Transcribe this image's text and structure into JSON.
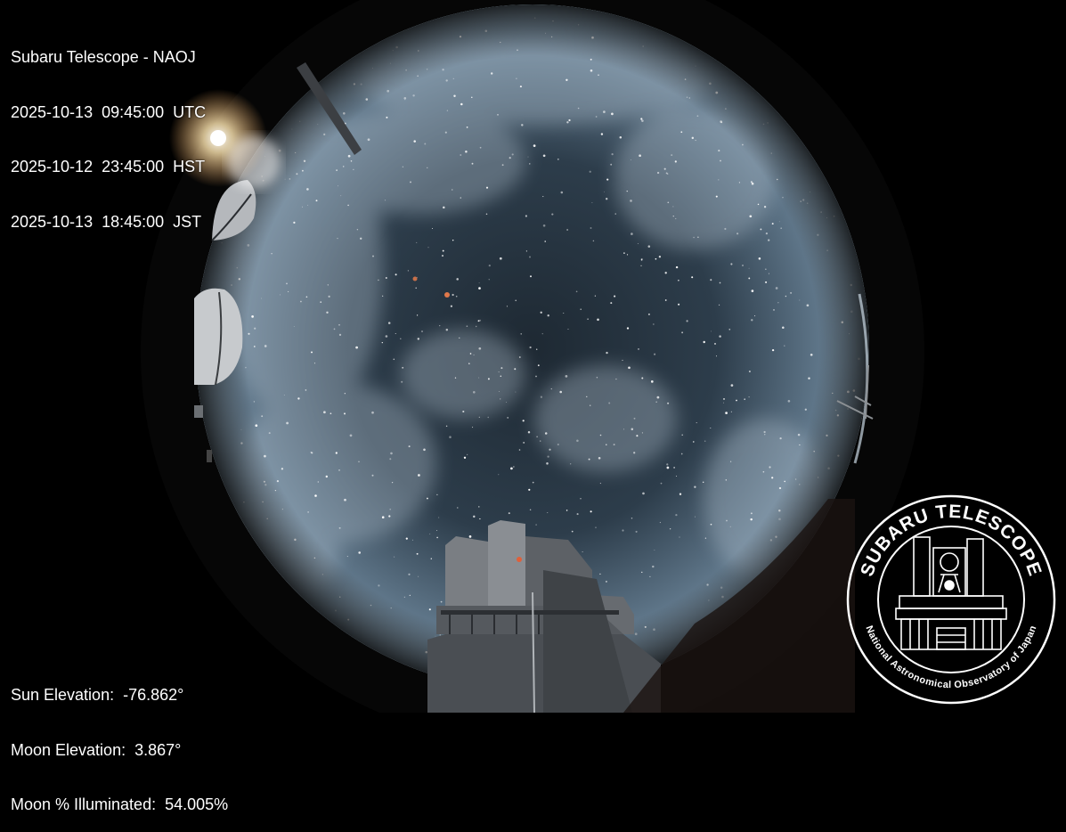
{
  "header": {
    "title": "Subaru Telescope - NAOJ",
    "utc": "2025-10-13  09:45:00  UTC",
    "hst": "2025-10-12  23:45:00  HST",
    "jst": "2025-10-13  18:45:00  JST"
  },
  "footer": {
    "sun_elevation": "Sun Elevation:  -76.862°",
    "moon_elevation": "Moon Elevation:  3.867°",
    "moon_illuminated": "Moon % Illuminated:  54.005%"
  },
  "logo": {
    "top_text": "SUBARU TELESCOPE",
    "bottom_text": "National Astronomical Observatory of Japan"
  },
  "colors": {
    "sky_center": "#23303b",
    "sky_edge": "#8fa6b8",
    "frame": "#000000",
    "text": "#ffffff"
  }
}
